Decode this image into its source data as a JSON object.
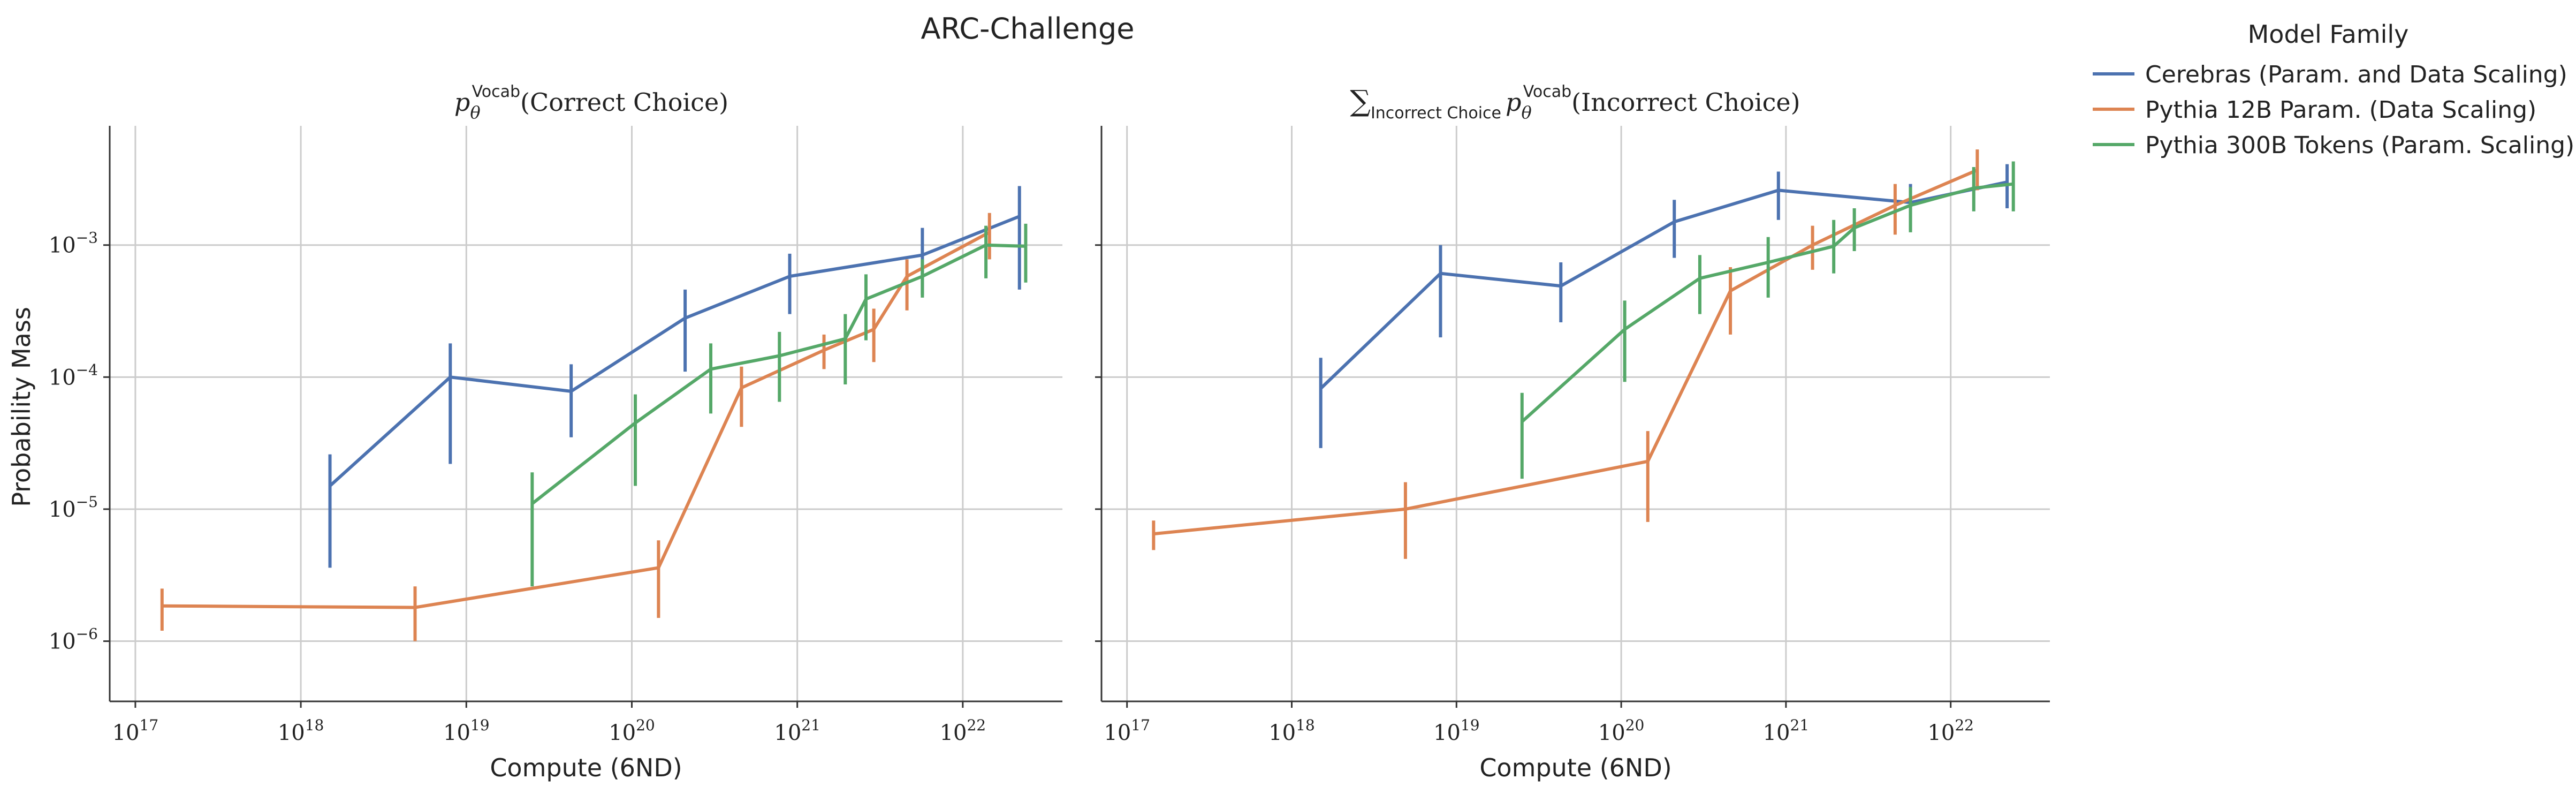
{
  "figure_title": "ARC-Challenge",
  "legend": {
    "title": "Model Family",
    "placement": "top-right",
    "entries": [
      {
        "label": "Cerebras (Param. and Data Scaling)",
        "color": "#4c72b0"
      },
      {
        "label": "Pythia 12B Param. (Data Scaling)",
        "color": "#dd8452"
      },
      {
        "label": "Pythia 300B Tokens (Param. Scaling)",
        "color": "#55a868"
      }
    ]
  },
  "axes_labels": {
    "xlabel": "Compute (6ND)",
    "ylabel": "Probability Mass",
    "x_tick_labels": [
      "10^17",
      "10^18",
      "10^19",
      "10^20",
      "10^21",
      "10^22"
    ],
    "y_tick_labels": [
      "10^-6",
      "10^-5",
      "10^-4",
      "10^-3"
    ]
  },
  "chart_data": [
    {
      "type": "line",
      "title": "p_θ^Vocab(Correct Choice)",
      "xlabel": "Compute (6ND)",
      "ylabel": "Probability Mass",
      "xscale": "log",
      "yscale": "log",
      "xlim": [
        7e+16,
        4e+22
      ],
      "ylim": [
        3.5e-07,
        0.008
      ],
      "grid": true,
      "series": [
        {
          "name": "Cerebras (Param. and Data Scaling)",
          "color": "#4c72b0",
          "points": [
            {
              "x": 1.5e+18,
              "y": 1.5e-05,
              "lo": 3.6e-06,
              "hi": 2.6e-05
            },
            {
              "x": 8e+18,
              "y": 0.0001,
              "lo": 2.2e-05,
              "hi": 0.00018
            },
            {
              "x": 4.3e+19,
              "y": 7.8e-05,
              "lo": 3.5e-05,
              "hi": 0.000125
            },
            {
              "x": 2.1e+20,
              "y": 0.00028,
              "lo": 0.00011,
              "hi": 0.00046
            },
            {
              "x": 9e+20,
              "y": 0.00058,
              "lo": 0.0003,
              "hi": 0.00086
            },
            {
              "x": 5.7e+21,
              "y": 0.00084,
              "lo": 0.00042,
              "hi": 0.00135
            },
            {
              "x": 2.2e+22,
              "y": 0.00165,
              "lo": 0.00046,
              "hi": 0.0028
            }
          ]
        },
        {
          "name": "Pythia 12B Param. (Data Scaling)",
          "color": "#dd8452",
          "points": [
            {
              "x": 1.45e+17,
              "y": 1.85e-06,
              "lo": 1.2e-06,
              "hi": 2.5e-06
            },
            {
              "x": 4.9e+18,
              "y": 1.8e-06,
              "lo": 1e-06,
              "hi": 2.6e-06
            },
            {
              "x": 1.45e+20,
              "y": 3.6e-06,
              "lo": 1.5e-06,
              "hi": 5.8e-06
            },
            {
              "x": 4.6e+20,
              "y": 8.3e-05,
              "lo": 4.2e-05,
              "hi": 0.00012
            },
            {
              "x": 1.45e+21,
              "y": 0.00016,
              "lo": 0.000115,
              "hi": 0.00021
            },
            {
              "x": 2.9e+21,
              "y": 0.00023,
              "lo": 0.00013,
              "hi": 0.00033
            },
            {
              "x": 4.6e+21,
              "y": 0.00058,
              "lo": 0.00032,
              "hi": 0.00078
            },
            {
              "x": 1.45e+22,
              "y": 0.00125,
              "lo": 0.00078,
              "hi": 0.00175
            }
          ]
        },
        {
          "name": "Pythia 300B Tokens (Param. Scaling)",
          "color": "#55a868",
          "points": [
            {
              "x": 2.5e+19,
              "y": 1.1e-05,
              "lo": 2.6e-06,
              "hi": 1.9e-05
            },
            {
              "x": 1.05e+20,
              "y": 4.5e-05,
              "lo": 1.5e-05,
              "hi": 7.4e-05
            },
            {
              "x": 3e+20,
              "y": 0.000115,
              "lo": 5.3e-05,
              "hi": 0.00018
            },
            {
              "x": 7.8e+20,
              "y": 0.000145,
              "lo": 6.5e-05,
              "hi": 0.00022
            },
            {
              "x": 1.95e+21,
              "y": 0.000195,
              "lo": 8.8e-05,
              "hi": 0.0003
            },
            {
              "x": 2.6e+21,
              "y": 0.00039,
              "lo": 0.00019,
              "hi": 0.0006
            },
            {
              "x": 5.7e+21,
              "y": 0.00058,
              "lo": 0.0004,
              "hi": 0.00078
            },
            {
              "x": 1.38e+22,
              "y": 0.001,
              "lo": 0.00056,
              "hi": 0.0014
            },
            {
              "x": 2.4e+22,
              "y": 0.00098,
              "lo": 0.00052,
              "hi": 0.00145
            }
          ]
        }
      ]
    },
    {
      "type": "line",
      "title": "∑_Incorrect Choice p_θ^Vocab(Incorrect Choice)",
      "xlabel": "Compute (6ND)",
      "ylabel": "",
      "xscale": "log",
      "yscale": "log",
      "xlim": [
        7e+16,
        4e+22
      ],
      "ylim": [
        3.5e-07,
        0.008
      ],
      "grid": true,
      "series": [
        {
          "name": "Cerebras (Param. and Data Scaling)",
          "color": "#4c72b0",
          "points": [
            {
              "x": 1.5e+18,
              "y": 8.2e-05,
              "lo": 2.9e-05,
              "hi": 0.00014
            },
            {
              "x": 8e+18,
              "y": 0.00061,
              "lo": 0.0002,
              "hi": 0.001
            },
            {
              "x": 4.3e+19,
              "y": 0.00049,
              "lo": 0.00026,
              "hi": 0.00074
            },
            {
              "x": 2.1e+20,
              "y": 0.0015,
              "lo": 0.0008,
              "hi": 0.0022
            },
            {
              "x": 9e+20,
              "y": 0.0026,
              "lo": 0.00155,
              "hi": 0.0036
            },
            {
              "x": 5.7e+21,
              "y": 0.0021,
              "lo": 0.0013,
              "hi": 0.0029
            },
            {
              "x": 2.2e+22,
              "y": 0.003,
              "lo": 0.0019,
              "hi": 0.0041
            }
          ]
        },
        {
          "name": "Pythia 12B Param. (Data Scaling)",
          "color": "#dd8452",
          "points": [
            {
              "x": 1.45e+17,
              "y": 6.5e-06,
              "lo": 4.9e-06,
              "hi": 8.2e-06
            },
            {
              "x": 4.9e+18,
              "y": 1e-05,
              "lo": 4.2e-06,
              "hi": 1.6e-05
            },
            {
              "x": 1.45e+20,
              "y": 2.3e-05,
              "lo": 8e-06,
              "hi": 3.9e-05
            },
            {
              "x": 4.6e+20,
              "y": 0.00045,
              "lo": 0.00021,
              "hi": 0.00068
            },
            {
              "x": 1.45e+21,
              "y": 0.001,
              "lo": 0.00065,
              "hi": 0.0014
            },
            {
              "x": 4.6e+21,
              "y": 0.002,
              "lo": 0.0012,
              "hi": 0.0029
            },
            {
              "x": 1.45e+22,
              "y": 0.0037,
              "lo": 0.0026,
              "hi": 0.0053
            }
          ]
        },
        {
          "name": "Pythia 300B Tokens (Param. Scaling)",
          "color": "#55a868",
          "points": [
            {
              "x": 2.5e+19,
              "y": 4.6e-05,
              "lo": 1.7e-05,
              "hi": 7.6e-05
            },
            {
              "x": 1.05e+20,
              "y": 0.00023,
              "lo": 9.2e-05,
              "hi": 0.00038
            },
            {
              "x": 3e+20,
              "y": 0.00056,
              "lo": 0.0003,
              "hi": 0.00084
            },
            {
              "x": 7.8e+20,
              "y": 0.00074,
              "lo": 0.0004,
              "hi": 0.00115
            },
            {
              "x": 1.95e+21,
              "y": 0.00098,
              "lo": 0.00061,
              "hi": 0.00155
            },
            {
              "x": 2.6e+21,
              "y": 0.00135,
              "lo": 0.0009,
              "hi": 0.0019
            },
            {
              "x": 5.7e+21,
              "y": 0.002,
              "lo": 0.00125,
              "hi": 0.00275
            },
            {
              "x": 1.38e+22,
              "y": 0.0027,
              "lo": 0.0018,
              "hi": 0.0039
            },
            {
              "x": 2.4e+22,
              "y": 0.0029,
              "lo": 0.0018,
              "hi": 0.0043
            }
          ]
        }
      ]
    }
  ]
}
